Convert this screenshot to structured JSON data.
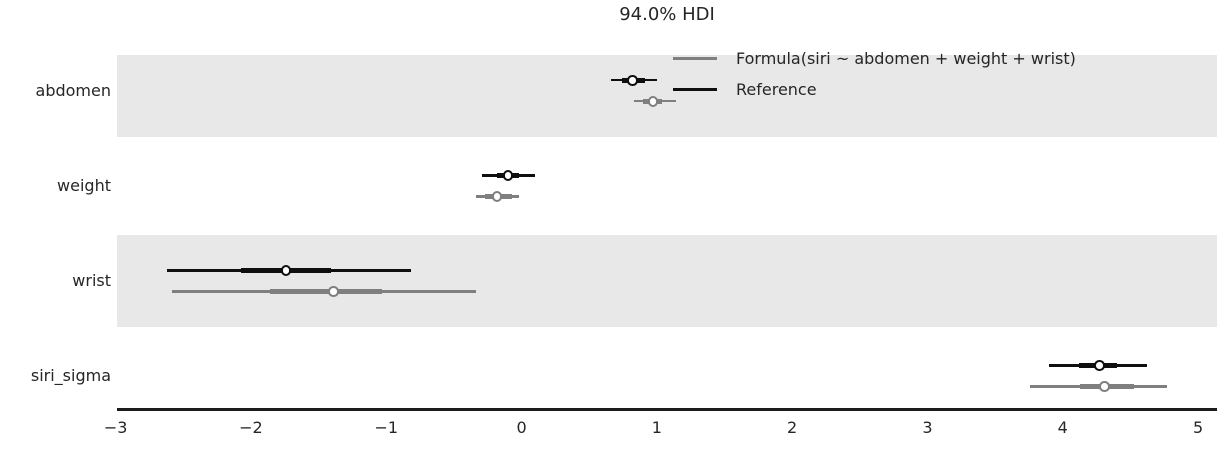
{
  "chart_data": {
    "type": "forest",
    "title": "94.0% HDI",
    "xlabel": "",
    "ylabel": "",
    "xlim": [
      -2.99,
      5.14
    ],
    "xtick_values": [
      -3,
      -2,
      -1,
      0,
      1,
      2,
      3,
      4,
      5
    ],
    "xtick_labels": [
      "−3",
      "−2",
      "−1",
      "0",
      "1",
      "2",
      "3",
      "4",
      "5"
    ],
    "grid": false,
    "band_color": "#e8e8e8",
    "background_color": "#ffffff",
    "text_color": "#262626",
    "legend": {
      "position": "upper right",
      "frame": false,
      "entries": [
        {
          "label": "Formula(siri ~ abdomen + weight + wrist)",
          "color": "#7f7f7f"
        },
        {
          "label": "Reference",
          "color": "#0f0f0f"
        }
      ]
    },
    "rows": [
      {
        "label": "abdomen",
        "shaded": true,
        "intervals": [
          {
            "series": "Reference",
            "color": "#0f0f0f",
            "hdi": [
              0.66,
              1.0
            ],
            "quartile": [
              0.74,
              0.91
            ],
            "point": 0.82
          },
          {
            "series": "Formula(siri ~ abdomen + weight + wrist)",
            "color": "#7f7f7f",
            "hdi": [
              0.83,
              1.14
            ],
            "quartile": [
              0.9,
              1.04
            ],
            "point": 0.97
          }
        ]
      },
      {
        "label": "weight",
        "shaded": false,
        "intervals": [
          {
            "series": "Reference",
            "color": "#0f0f0f",
            "hdi": [
              -0.29,
              0.1
            ],
            "quartile": [
              -0.18,
              -0.02
            ],
            "point": -0.1
          },
          {
            "series": "Formula(siri ~ abdomen + weight + wrist)",
            "color": "#7f7f7f",
            "hdi": [
              -0.34,
              -0.02
            ],
            "quartile": [
              -0.27,
              -0.07
            ],
            "point": -0.18
          }
        ]
      },
      {
        "label": "wrist",
        "shaded": true,
        "intervals": [
          {
            "series": "Reference",
            "color": "#0f0f0f",
            "hdi": [
              -2.62,
              -0.82
            ],
            "quartile": [
              -2.07,
              -1.41
            ],
            "point": -1.74
          },
          {
            "series": "Formula(siri ~ abdomen + weight + wrist)",
            "color": "#7f7f7f",
            "hdi": [
              -2.58,
              -0.34
            ],
            "quartile": [
              -1.86,
              -1.03
            ],
            "point": -1.39
          }
        ]
      },
      {
        "label": "siri_sigma",
        "shaded": false,
        "intervals": [
          {
            "series": "Reference",
            "color": "#0f0f0f",
            "hdi": [
              3.9,
              4.62
            ],
            "quartile": [
              4.12,
              4.4
            ],
            "point": 4.27
          },
          {
            "series": "Formula(siri ~ abdomen + weight + wrist)",
            "color": "#7f7f7f",
            "hdi": [
              3.76,
              4.77
            ],
            "quartile": [
              4.13,
              4.53
            ],
            "point": 4.31
          }
        ]
      }
    ]
  }
}
